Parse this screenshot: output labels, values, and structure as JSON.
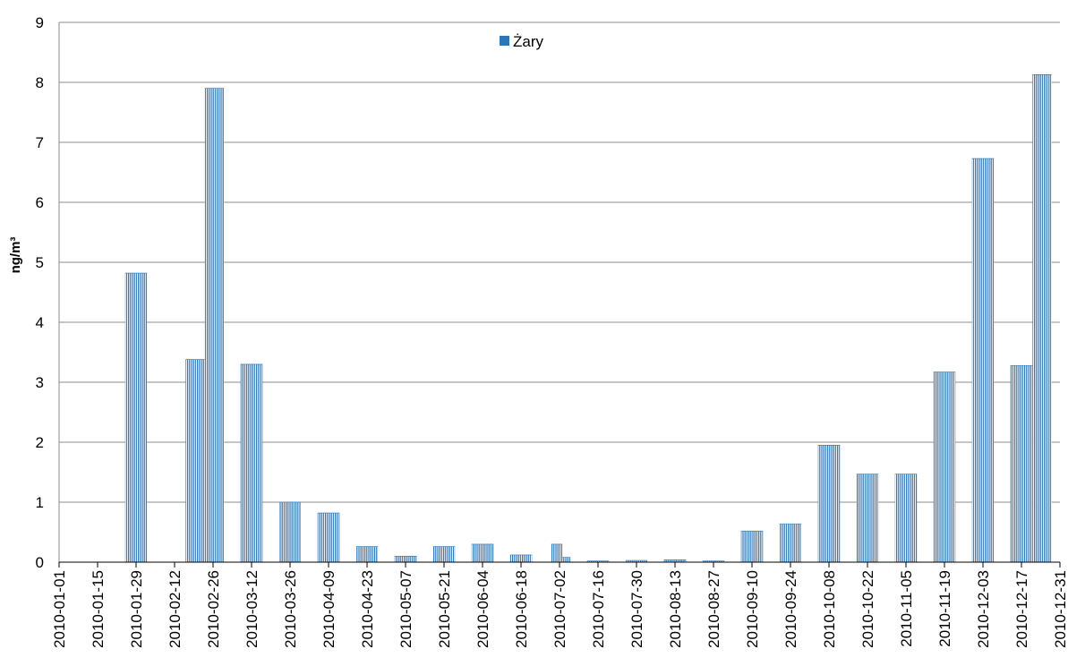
{
  "chart_data": {
    "type": "bar",
    "title": "",
    "xlabel": "",
    "ylabel": "ng/m³",
    "ylim": [
      0,
      9
    ],
    "yticks": [
      0,
      1,
      2,
      3,
      4,
      5,
      6,
      7,
      8,
      9
    ],
    "grid": true,
    "legend": "top-center",
    "x_tick_labels": [
      "2010-01-01",
      "2010-01-15",
      "2010-01-29",
      "2010-02-12",
      "2010-02-26",
      "2010-03-12",
      "2010-03-26",
      "2010-04-09",
      "2010-04-23",
      "2010-05-07",
      "2010-05-21",
      "2010-06-04",
      "2010-06-18",
      "2010-07-02",
      "2010-07-16",
      "2010-07-30",
      "2010-08-13",
      "2010-08-27",
      "2010-09-10",
      "2010-09-24",
      "2010-10-08",
      "2010-10-22",
      "2010-11-05",
      "2010-11-19",
      "2010-12-03",
      "2010-12-17",
      "2010-12-31"
    ],
    "color": "#2e75b6",
    "series": [
      {
        "name": "Żary",
        "points": [
          {
            "x": "2010-01-25",
            "x2": "2010-02-02",
            "y": 4.82
          },
          {
            "x": "2010-02-16",
            "x2": "2010-02-23",
            "y": 3.38
          },
          {
            "x": "2010-02-23",
            "x2": "2010-03-02",
            "y": 7.9
          },
          {
            "x": "2010-03-08",
            "x2": "2010-03-16",
            "y": 3.3
          },
          {
            "x": "2010-03-22",
            "x2": "2010-03-30",
            "y": 1.0
          },
          {
            "x": "2010-04-05",
            "x2": "2010-04-13",
            "y": 0.82
          },
          {
            "x": "2010-04-19",
            "x2": "2010-04-27",
            "y": 0.26
          },
          {
            "x": "2010-05-03",
            "x2": "2010-05-11",
            "y": 0.1
          },
          {
            "x": "2010-05-17",
            "x2": "2010-05-25",
            "y": 0.26
          },
          {
            "x": "2010-05-31",
            "x2": "2010-06-08",
            "y": 0.3
          },
          {
            "x": "2010-06-14",
            "x2": "2010-06-22",
            "y": 0.12
          },
          {
            "x": "2010-06-29",
            "x2": "2010-07-03",
            "y": 0.3
          },
          {
            "x": "2010-07-03",
            "x2": "2010-07-06",
            "y": 0.08
          },
          {
            "x": "2010-07-12",
            "x2": "2010-07-20",
            "y": 0.02
          },
          {
            "x": "2010-07-26",
            "x2": "2010-08-03",
            "y": 0.03
          },
          {
            "x": "2010-08-09",
            "x2": "2010-08-17",
            "y": 0.04
          },
          {
            "x": "2010-08-23",
            "x2": "2010-08-31",
            "y": 0.02
          },
          {
            "x": "2010-09-06",
            "x2": "2010-09-14",
            "y": 0.52
          },
          {
            "x": "2010-09-20",
            "x2": "2010-09-28",
            "y": 0.64
          },
          {
            "x": "2010-10-04",
            "x2": "2010-10-12",
            "y": 1.95
          },
          {
            "x": "2010-10-18",
            "x2": "2010-10-26",
            "y": 1.47
          },
          {
            "x": "2010-11-01",
            "x2": "2010-11-09",
            "y": 1.47
          },
          {
            "x": "2010-11-15",
            "x2": "2010-11-23",
            "y": 3.17
          },
          {
            "x": "2010-11-29",
            "x2": "2010-12-07",
            "y": 6.73
          },
          {
            "x": "2010-12-13",
            "x2": "2010-12-21",
            "y": 3.28
          },
          {
            "x": "2010-12-21",
            "x2": "2010-12-28",
            "y": 8.13
          }
        ]
      }
    ]
  }
}
